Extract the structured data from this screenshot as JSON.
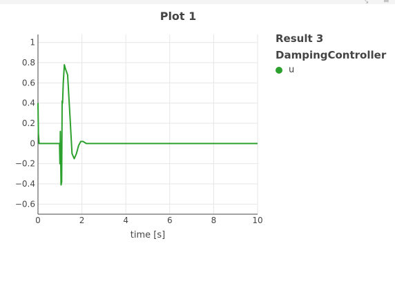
{
  "plot": {
    "title": "Plot 1"
  },
  "modebar": {
    "icons": [
      "pan-icon",
      "menu-icon"
    ]
  },
  "legend": {
    "groups": [
      "Result 3",
      "DampingController"
    ],
    "items": [
      {
        "label": "u",
        "color": "#2ca02c"
      }
    ]
  },
  "chart_data": {
    "type": "line",
    "title": "Plot 1",
    "xlabel": "time [s]",
    "ylabel": "",
    "xlim": [
      0,
      10
    ],
    "ylim": [
      -0.7,
      1.08
    ],
    "x_ticks": [
      0,
      2,
      4,
      6,
      8,
      10
    ],
    "y_ticks": [
      -0.6,
      -0.4,
      -0.2,
      0,
      0.2,
      0.4,
      0.6,
      0.8,
      1
    ],
    "y_tick_labels": [
      "−0.6",
      "−0.4",
      "−0.2",
      "0",
      "0.2",
      "0.4",
      "0.6",
      "0.8",
      "1"
    ],
    "grid": true,
    "legend_position": "right",
    "series": [
      {
        "name": "u",
        "color": "#2ca02c",
        "x": [
          0,
          0.02,
          0.05,
          0.1,
          0.5,
          0.9,
          0.98,
          1.0,
          1.02,
          1.05,
          1.08,
          1.1,
          1.12,
          1.15,
          1.2,
          1.25,
          1.35,
          1.45,
          1.55,
          1.65,
          1.75,
          1.85,
          1.95,
          2.05,
          2.2,
          2.4,
          2.6,
          3.0,
          5.0,
          8.0,
          10.0
        ],
        "y": [
          0.4,
          0.1,
          0.0,
          0.0,
          0.0,
          0.0,
          0.0,
          -0.2,
          0.12,
          -0.41,
          -0.38,
          0.42,
          0.4,
          0.6,
          0.78,
          0.74,
          0.68,
          0.3,
          -0.1,
          -0.15,
          -0.1,
          -0.02,
          0.02,
          0.02,
          0.0,
          0.0,
          0.0,
          0.0,
          0.0,
          0.0,
          0.0
        ]
      }
    ]
  }
}
